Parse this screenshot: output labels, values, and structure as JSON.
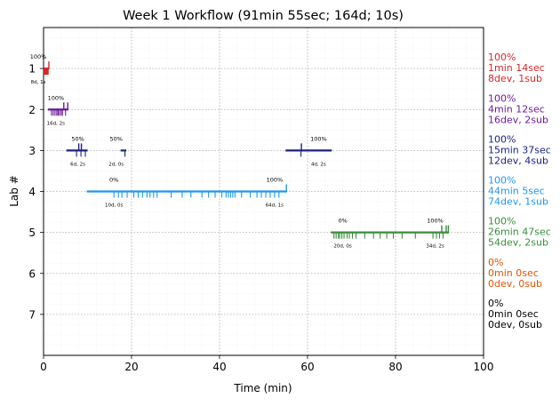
{
  "chart_data": {
    "type": "timeline",
    "title": "Week 1 Workflow (91min 55sec; 164d; 10s)",
    "xlabel": "Time (min)",
    "ylabel": "Lab #",
    "xlim": [
      0,
      100
    ],
    "ylim": [
      8,
      0
    ],
    "x_ticks": [
      0,
      20,
      40,
      60,
      80,
      100
    ],
    "y_ticks": [
      1,
      2,
      3,
      4,
      5,
      6,
      7
    ],
    "grid": true,
    "colors": {
      "lab1": "#d62728",
      "lab2": "#6a1b9a",
      "lab3": "#1a237e",
      "lab4": "#2196f3",
      "lab5": "#388e3c",
      "lab6": "#e65100",
      "lab7": "#000000"
    },
    "labs": [
      {
        "lab": 1,
        "color": "#d62728",
        "summary": [
          "100%",
          "1min 14sec",
          "8dev, 1sub"
        ],
        "segments": [
          {
            "start": 0.0,
            "end": 1.2
          }
        ],
        "events_down": [
          0.1,
          0.3,
          0.5,
          0.7,
          0.9,
          1.05
        ],
        "events_up": [
          1.2
        ],
        "annotations": [
          {
            "x": -1.2,
            "above": "100%",
            "below": "8d, 1s"
          }
        ]
      },
      {
        "lab": 2,
        "color": "#6a1b9a",
        "summary": [
          "100%",
          "4min 12sec",
          "16dev, 2sub"
        ],
        "segments": [
          {
            "start": 1.0,
            "end": 5.5
          }
        ],
        "events_down": [
          1.8,
          2.2,
          2.6,
          3.0,
          3.3,
          3.6,
          4.0,
          4.3,
          5.0
        ],
        "events_up": [
          4.6,
          5.5
        ],
        "annotations": [
          {
            "x": 2.8,
            "above": "100%",
            "below": "16d, 2s"
          }
        ]
      },
      {
        "lab": 3,
        "color": "#1a237e",
        "summary": [
          "100%",
          "15min 37sec",
          "12dev, 4sub"
        ],
        "segments": [
          {
            "start": 5.2,
            "end": 10.0
          },
          {
            "start": 17.5,
            "end": 18.8
          },
          {
            "start": 55.0,
            "end": 65.5
          }
        ],
        "events_down": [
          7.5,
          8.5,
          9.5,
          18.5,
          58.5
        ],
        "events_up": [
          8.0,
          8.6,
          58.6
        ],
        "annotations": [
          {
            "x": 7.8,
            "above": "50%",
            "below": "6d, 2s"
          },
          {
            "x": 16.5,
            "above": "50%",
            "below": "2d, 0s"
          },
          {
            "x": 62.5,
            "above": "100%",
            "below": "4d, 2s"
          }
        ]
      },
      {
        "lab": 4,
        "color": "#2196f3",
        "summary": [
          "100%",
          "44min 5sec",
          "74dev, 1sub"
        ],
        "segments": [
          {
            "start": 9.8,
            "end": 55.3
          }
        ],
        "events_down": [
          16.0,
          17.0,
          17.8,
          19.0,
          20.5,
          21.5,
          22.5,
          23.5,
          24.2,
          25.0,
          25.8,
          29.0,
          31.5,
          33.5,
          36.0,
          37.5,
          39.0,
          40.5,
          41.5,
          42.0,
          42.5,
          43.0,
          43.5,
          45.0,
          47.0,
          48.5,
          49.5,
          50.5,
          51.5,
          52.5,
          53.5
        ],
        "events_up": [
          55.2
        ],
        "annotations": [
          {
            "x": 16.0,
            "above": "0%",
            "below": "10d, 0s"
          },
          {
            "x": 52.5,
            "above": "100%",
            "below": "64d, 1s"
          }
        ]
      },
      {
        "lab": 5,
        "color": "#388e3c",
        "summary": [
          "100%",
          "26min 47sec",
          "54dev, 2sub"
        ],
        "segments": [
          {
            "start": 65.3,
            "end": 92.1
          }
        ],
        "events_down": [
          66.0,
          66.5,
          67.0,
          67.3,
          67.8,
          68.3,
          69.0,
          69.5,
          70.2,
          71.0,
          73.0,
          75.0,
          76.5,
          78.0,
          79.5,
          81.5,
          84.5,
          88.5,
          89.3,
          90.0,
          90.8
        ],
        "events_up": [
          90.5,
          91.5,
          92.0
        ],
        "annotations": [
          {
            "x": 68.0,
            "above": "0%",
            "below": "20d, 0s"
          },
          {
            "x": 89.0,
            "above": "100%",
            "below": "34d, 2s"
          }
        ]
      },
      {
        "lab": 6,
        "color": "#e65100",
        "summary": [
          "0%",
          "0min 0sec",
          "0dev, 0sub"
        ],
        "segments": [],
        "events_down": [],
        "events_up": [],
        "annotations": []
      },
      {
        "lab": 7,
        "color": "#000000",
        "summary": [
          "0%",
          "0min 0sec",
          "0dev, 0sub"
        ],
        "segments": [],
        "events_down": [],
        "events_up": [],
        "annotations": []
      }
    ]
  }
}
